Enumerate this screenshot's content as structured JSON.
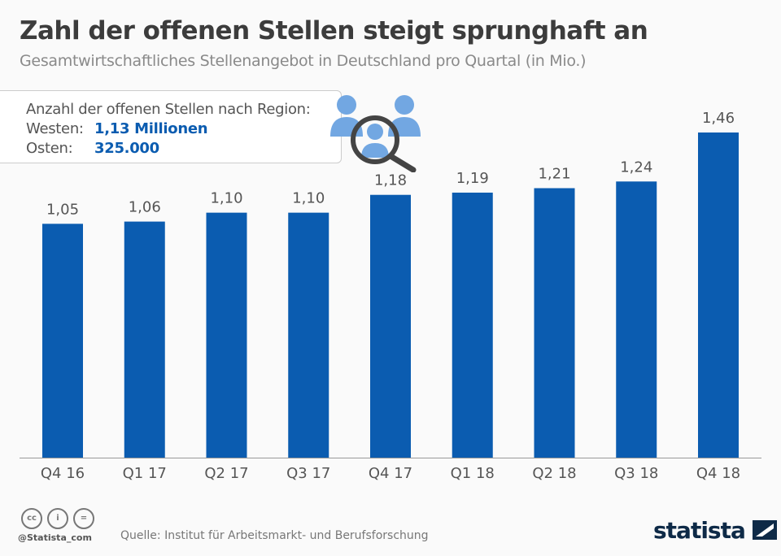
{
  "header": {
    "title": "Zahl der offenen Stellen steigt sprunghaft an",
    "subtitle": "Gesamtwirtschaftliches Stellenangebot in Deutschland pro Quartal (in Mio.)"
  },
  "info": {
    "heading": "Anzahl der offenen Stellen nach Region:",
    "west_label": "Westen:",
    "west_value": "1,13 Millionen",
    "east_label": "Osten:",
    "east_value": "325.000"
  },
  "footer": {
    "handle": "@Statista_com",
    "source": "Quelle: Institut für Arbeitsmarkt- und Berufsforschung",
    "logo": "statista"
  },
  "colors": {
    "bar": "#0b5cb0",
    "icon_people": "#72a7e2",
    "magnifier": "#444444"
  },
  "icons": [
    "people-search-icon",
    "cc-icon",
    "by-icon",
    "nd-icon",
    "statista-logo"
  ],
  "chart_data": {
    "type": "bar",
    "categories": [
      "Q4 16",
      "Q1 17",
      "Q2 17",
      "Q3 17",
      "Q4 17",
      "Q1 18",
      "Q2 18",
      "Q3 18",
      "Q4 18"
    ],
    "values": [
      1.05,
      1.06,
      1.1,
      1.1,
      1.18,
      1.19,
      1.21,
      1.24,
      1.46
    ],
    "data_labels": [
      "1,05",
      "1,06",
      "1,10",
      "1,10",
      "1,18",
      "1,19",
      "1,21",
      "1,24",
      "1,46"
    ],
    "title": "Zahl der offenen Stellen steigt sprunghaft an",
    "ylim": [
      0,
      1.46
    ],
    "grid": false,
    "legend": "none"
  }
}
